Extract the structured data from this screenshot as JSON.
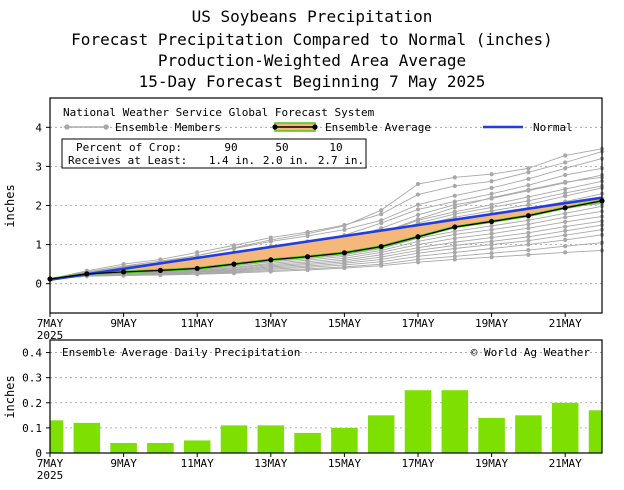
{
  "titles": [
    "US Soybeans Precipitation",
    "Forecast Precipitation Compared to Normal (inches)",
    "Production-Weighted Area Average",
    "15-Day Forecast Beginning 7 May 2025"
  ],
  "colors": {
    "ensemble_members": "#a8a8a8",
    "ensemble_average": "#000000",
    "band_fill": "#f5b87a",
    "band_edge": "#4cc51a",
    "normal": "#1f3fe0",
    "bars": "#7de000",
    "grid": "#9a9a9a"
  },
  "chart_data": [
    {
      "type": "line",
      "name": "cumulative-precipitation",
      "ylabel": "inches",
      "ylim": [
        -0.75,
        4.75
      ],
      "yticks": [
        0,
        1,
        2,
        3,
        4
      ],
      "xlim": [
        0,
        15
      ],
      "xticks": [
        0,
        2,
        4,
        6,
        8,
        10,
        12,
        14
      ],
      "xtick_labels": [
        "7MAY",
        "9MAY",
        "11MAY",
        "13MAY",
        "15MAY",
        "17MAY",
        "19MAY",
        "21MAY"
      ],
      "xtick_year": "2025",
      "legend": {
        "system": "National Weather Service Global Forecast System",
        "members": "Ensemble Members",
        "average": "Ensemble Average",
        "normal": "Normal"
      },
      "percent_table": {
        "header_label": "Percent of Crop:",
        "percents": [
          "90",
          "50",
          "10"
        ],
        "row_label": "Receives at Least:",
        "amounts": [
          "1.4 in.",
          "2.0 in.",
          "2.7 in."
        ]
      },
      "normal": {
        "x": [
          0,
          15
        ],
        "y": [
          0.1,
          2.2
        ]
      },
      "ensemble_average": {
        "x": [
          0,
          1,
          2,
          3,
          4,
          5,
          6,
          7,
          8,
          9,
          10,
          11,
          12,
          13,
          14,
          15
        ],
        "y": [
          0.12,
          0.25,
          0.3,
          0.34,
          0.39,
          0.5,
          0.61,
          0.69,
          0.79,
          0.95,
          1.2,
          1.45,
          1.59,
          1.74,
          1.94,
          2.12
        ]
      },
      "ensemble_members": [
        [
          0.12,
          0.28,
          0.42,
          0.55,
          0.72,
          0.92,
          1.12,
          1.28,
          1.48,
          1.88,
          2.55,
          2.72,
          2.8,
          2.95,
          3.28,
          3.45
        ],
        [
          0.12,
          0.33,
          0.5,
          0.62,
          0.8,
          0.98,
          1.18,
          1.32,
          1.5,
          1.78,
          2.28,
          2.5,
          2.62,
          2.85,
          3.1,
          3.38
        ],
        [
          0.12,
          0.3,
          0.45,
          0.58,
          0.72,
          0.9,
          1.08,
          1.22,
          1.38,
          1.62,
          2.02,
          2.25,
          2.45,
          2.68,
          2.95,
          3.2
        ],
        [
          0.12,
          0.29,
          0.4,
          0.5,
          0.63,
          0.8,
          0.96,
          1.08,
          1.24,
          1.55,
          1.9,
          2.1,
          2.3,
          2.52,
          2.78,
          2.95
        ],
        [
          0.12,
          0.27,
          0.38,
          0.46,
          0.56,
          0.72,
          0.86,
          0.98,
          1.12,
          1.42,
          1.76,
          2.02,
          2.18,
          2.38,
          2.58,
          2.78
        ],
        [
          0.12,
          0.26,
          0.34,
          0.41,
          0.5,
          0.64,
          0.78,
          0.88,
          1.02,
          1.28,
          1.62,
          1.84,
          2.02,
          2.22,
          2.42,
          2.62
        ],
        [
          0.12,
          0.25,
          0.31,
          0.37,
          0.44,
          0.56,
          0.7,
          0.8,
          0.94,
          1.15,
          1.48,
          1.7,
          1.86,
          2.02,
          2.24,
          2.45
        ],
        [
          0.12,
          0.24,
          0.29,
          0.34,
          0.4,
          0.52,
          0.66,
          0.75,
          0.88,
          1.05,
          1.38,
          1.58,
          1.75,
          1.92,
          2.1,
          2.3
        ],
        [
          0.12,
          0.25,
          0.3,
          0.35,
          0.42,
          0.55,
          0.68,
          0.78,
          0.9,
          1.1,
          1.34,
          1.52,
          1.66,
          1.82,
          2.0,
          2.18
        ],
        [
          0.12,
          0.24,
          0.28,
          0.32,
          0.37,
          0.48,
          0.6,
          0.68,
          0.8,
          0.98,
          1.25,
          1.45,
          1.58,
          1.72,
          1.92,
          2.08
        ],
        [
          0.12,
          0.23,
          0.27,
          0.3,
          0.35,
          0.45,
          0.56,
          0.64,
          0.74,
          0.9,
          1.16,
          1.34,
          1.48,
          1.62,
          1.8,
          1.98
        ],
        [
          0.12,
          0.23,
          0.26,
          0.29,
          0.33,
          0.42,
          0.52,
          0.6,
          0.7,
          0.85,
          1.08,
          1.26,
          1.38,
          1.52,
          1.7,
          1.85
        ],
        [
          0.12,
          0.22,
          0.25,
          0.28,
          0.31,
          0.4,
          0.49,
          0.56,
          0.65,
          0.8,
          1.0,
          1.16,
          1.28,
          1.42,
          1.58,
          1.72
        ],
        [
          0.12,
          0.22,
          0.24,
          0.27,
          0.3,
          0.37,
          0.46,
          0.52,
          0.6,
          0.74,
          0.92,
          1.06,
          1.18,
          1.3,
          1.46,
          1.6
        ],
        [
          0.12,
          0.21,
          0.23,
          0.26,
          0.29,
          0.35,
          0.43,
          0.49,
          0.56,
          0.68,
          0.85,
          0.98,
          1.08,
          1.2,
          1.35,
          1.5
        ],
        [
          0.12,
          0.21,
          0.23,
          0.25,
          0.28,
          0.33,
          0.4,
          0.45,
          0.52,
          0.62,
          0.78,
          0.9,
          1.0,
          1.1,
          1.24,
          1.38
        ],
        [
          0.12,
          0.2,
          0.22,
          0.24,
          0.26,
          0.31,
          0.37,
          0.42,
          0.48,
          0.56,
          0.7,
          0.8,
          0.9,
          1.0,
          1.12,
          1.25
        ],
        [
          0.12,
          0.2,
          0.21,
          0.23,
          0.25,
          0.29,
          0.34,
          0.38,
          0.43,
          0.5,
          0.62,
          0.7,
          0.78,
          0.86,
          0.96,
          1.05
        ],
        [
          0.12,
          0.19,
          0.21,
          0.22,
          0.24,
          0.27,
          0.31,
          0.35,
          0.4,
          0.46,
          0.55,
          0.62,
          0.68,
          0.74,
          0.8,
          0.85
        ],
        [
          0.12,
          0.3,
          0.44,
          0.52,
          0.6,
          0.7,
          0.82,
          0.95,
          1.1,
          1.3,
          1.65,
          1.95,
          2.2,
          2.4,
          2.6,
          2.72
        ],
        [
          0.12,
          0.27,
          0.36,
          0.44,
          0.52,
          0.62,
          0.74,
          0.85,
          0.98,
          1.2,
          1.55,
          1.78,
          1.95,
          2.12,
          2.32,
          2.5
        ],
        [
          0.12,
          0.24,
          0.32,
          0.4,
          0.48,
          0.6,
          0.72,
          0.82,
          0.96,
          1.22,
          1.42,
          1.6,
          1.72,
          1.85,
          1.95,
          2.05
        ]
      ]
    },
    {
      "type": "bar",
      "name": "daily-precipitation",
      "title": "Ensemble Average Daily Precipitation",
      "credit": "© World Ag Weather",
      "ylabel": "inches",
      "ylim": [
        0,
        0.45
      ],
      "yticks": [
        0,
        0.1,
        0.2,
        0.3,
        0.4
      ],
      "ytick_labels": [
        "0",
        "0.1",
        "0.2",
        "0.3",
        "0.4"
      ],
      "xlim": [
        0,
        15
      ],
      "xticks": [
        0,
        2,
        4,
        6,
        8,
        10,
        12,
        14
      ],
      "xtick_labels": [
        "7MAY",
        "9MAY",
        "11MAY",
        "13MAY",
        "15MAY",
        "17MAY",
        "19MAY",
        "21MAY"
      ],
      "xtick_year": "2025",
      "x": [
        0,
        1,
        2,
        3,
        4,
        5,
        6,
        7,
        8,
        9,
        10,
        11,
        12,
        13,
        14,
        15
      ],
      "values": [
        0.13,
        0.12,
        0.04,
        0.04,
        0.05,
        0.11,
        0.11,
        0.08,
        0.1,
        0.15,
        0.25,
        0.25,
        0.14,
        0.15,
        0.2,
        0.17
      ]
    }
  ]
}
